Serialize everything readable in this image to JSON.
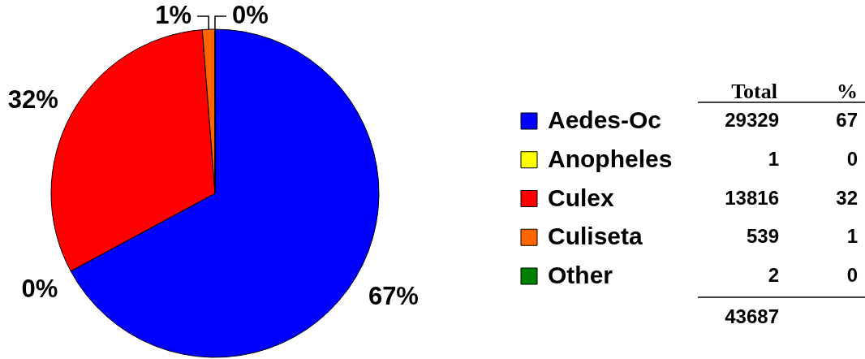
{
  "chart_data": {
    "type": "pie",
    "categories": [
      "Aedes-Oc",
      "Anopheles",
      "Culex",
      "Culiseta",
      "Other"
    ],
    "values": [
      29329,
      1,
      13816,
      539,
      2
    ],
    "colors": [
      "#0000ff",
      "#ffff00",
      "#ff0000",
      "#ff6600",
      "#008000"
    ],
    "data_labels": true,
    "legend": "right",
    "annotations": [
      "67%",
      "0%",
      "32%",
      "1%",
      "0%",
      "Total",
      "%",
      "67",
      "0",
      "32",
      "1",
      "0",
      "43687"
    ]
  }
}
